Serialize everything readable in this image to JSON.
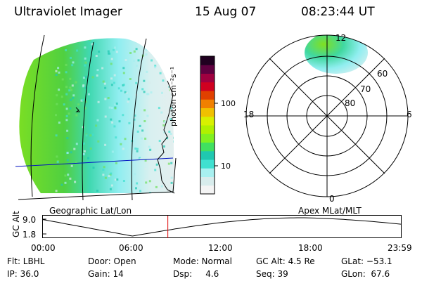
{
  "header": {
    "instrument": "Ultraviolet Imager",
    "date": "15 Aug 07",
    "time": "08:23:44 UT"
  },
  "colorbar": {
    "unit_label": "photon cm⁻²s⁻¹",
    "ticks": [
      "100",
      "10"
    ],
    "colors": [
      "#f4f4f4",
      "#d8ecec",
      "#a8f0f0",
      "#40e0d0",
      "#20c8b0",
      "#40e060",
      "#80f020",
      "#b0f000",
      "#d8f000",
      "#f0c000",
      "#f08000",
      "#e04000",
      "#d00020",
      "#a00040",
      "#600040",
      "#200020"
    ]
  },
  "geo_map": {
    "label": "Geographic Lat/Lon"
  },
  "polar_map": {
    "label": "Apex MLat/MLT",
    "mlt_labels": {
      "top": "12",
      "left": "18",
      "right": "6",
      "bottom": "0"
    },
    "lat_labels": [
      "60",
      "70",
      "80"
    ]
  },
  "altitude_plot": {
    "ylabel": "GC Alt",
    "yticks": [
      "9.0",
      "1.8"
    ],
    "xticks": [
      "00:00",
      "06:00",
      "12:00",
      "18:00",
      "23:59"
    ],
    "current_time_fraction": 0.349
  },
  "status": {
    "row1": {
      "flt": "Flt: LBHL",
      "door": "Door: Open",
      "mode": "Mode: Normal",
      "gc_alt": "GC Alt: 4.5 Re",
      "glat": "GLat: −53.1"
    },
    "row2": {
      "ip": "IP: 36.0",
      "gain": "Gain: 14",
      "dsp": "Dsp:     4.6",
      "seq": "Seq: 39",
      "glon": "GLon:  67.6"
    }
  }
}
